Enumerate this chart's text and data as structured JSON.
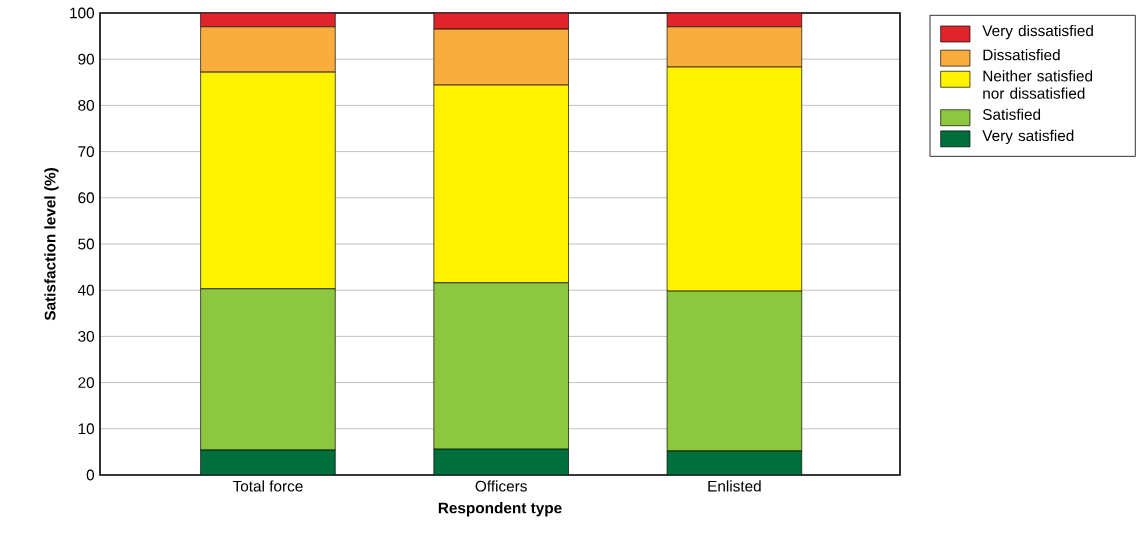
{
  "chart_data": {
    "type": "bar",
    "stacked": true,
    "xlabel": "Respondent type",
    "ylabel": "Satisfaction level (%)",
    "categories": [
      "Total force",
      "Officers",
      "Enlisted"
    ],
    "series": [
      {
        "name": "Very satisfied",
        "color": "#006f3c",
        "values": [
          5.4,
          5.6,
          5.2
        ]
      },
      {
        "name": "Satisfied",
        "color": "#8dc63f",
        "values": [
          34.9,
          36.0,
          34.6
        ]
      },
      {
        "name": "Neither satisfied nor dissatisfied",
        "color": "#fff200",
        "values": [
          46.9,
          42.8,
          48.5
        ]
      },
      {
        "name": "Dissatisfied",
        "color": "#f9ad3c",
        "values": [
          9.8,
          12.1,
          8.7
        ]
      },
      {
        "name": "Very dissatisfied",
        "color": "#e0242b",
        "values": [
          3.0,
          3.5,
          3.0
        ]
      }
    ],
    "ylim": [
      0,
      100
    ],
    "yticks": [
      0,
      10,
      20,
      30,
      40,
      50,
      60,
      70,
      80,
      90,
      100
    ],
    "grid": "y",
    "legend": "right"
  }
}
